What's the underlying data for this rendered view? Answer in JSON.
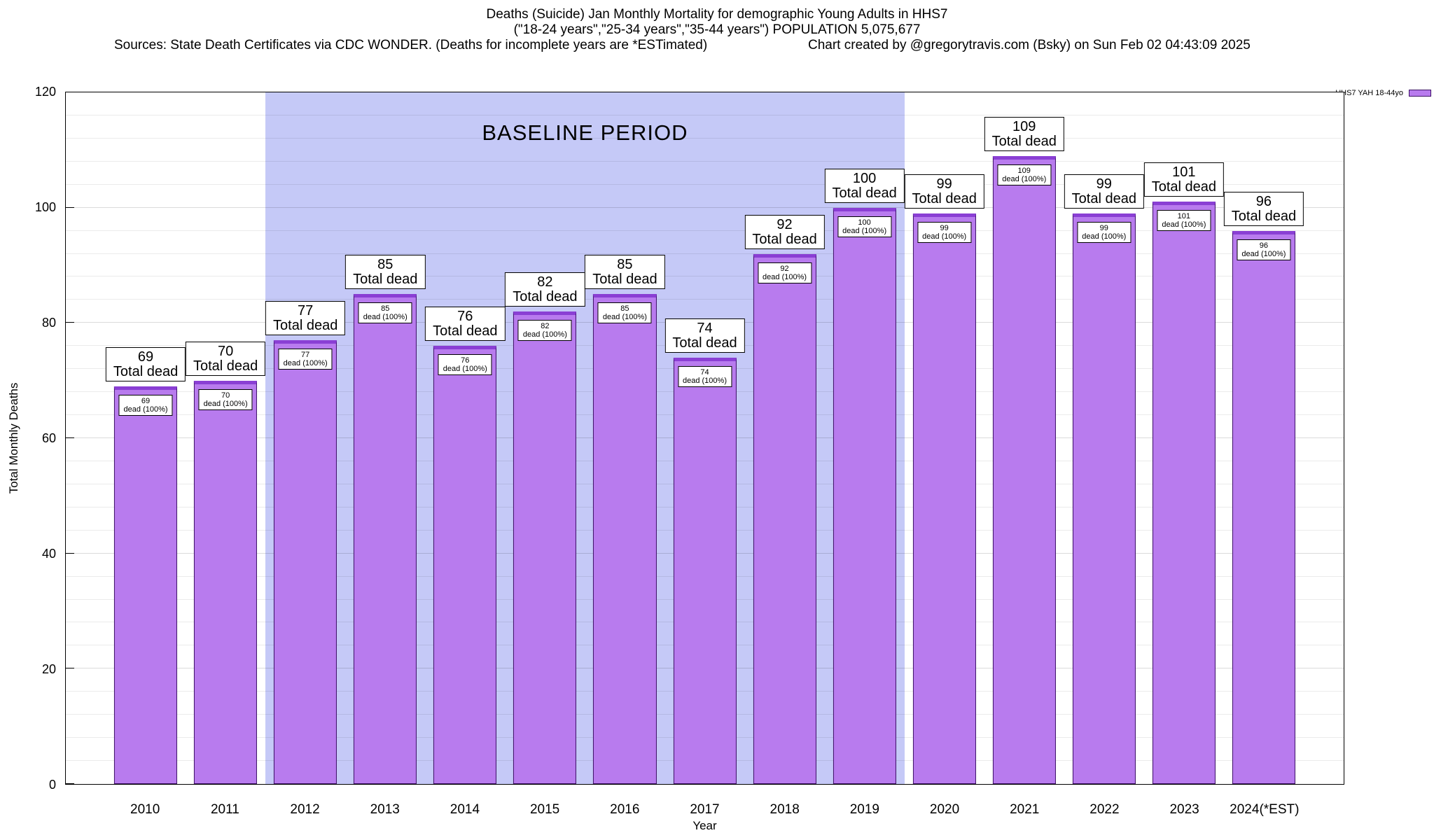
{
  "header": {
    "line1": "Deaths (Suicide) Jan Monthly Mortality for demographic Young Adults in HHS7",
    "line2": "(\"18-24 years\",\"25-34 years\",\"35-44 years\") POPULATION 5,075,677",
    "sources": "Sources: State Death Certificates via CDC WONDER. (Deaths for incomplete years are *ESTimated)",
    "credit": "Chart created by @gregorytravis.com (Bsky) on Sun Feb 02 04:43:09 2025"
  },
  "legend": {
    "label": "HHS7 YAH 18-44yo",
    "swatch_color": "#b87bee",
    "swatch_border": "#3d1166"
  },
  "baseline": {
    "label": "BASELINE PERIOD",
    "start_index": 2,
    "end_index": 9,
    "band_color": "#c5c9f7"
  },
  "axes": {
    "y_ticks": [
      0,
      20,
      40,
      60,
      80,
      100,
      120
    ],
    "minor_step": 4
  },
  "chart_data": {
    "type": "bar",
    "title": "Deaths (Suicide) Jan Monthly Mortality for demographic Young Adults in HHS7",
    "subtitle": "(\"18-24 years\",\"25-34 years\",\"35-44 years\") POPULATION 5,075,677",
    "categories": [
      "2010",
      "2011",
      "2012",
      "2013",
      "2014",
      "2015",
      "2016",
      "2017",
      "2018",
      "2019",
      "2020",
      "2021",
      "2022",
      "2023",
      "2024(*EST)"
    ],
    "values": [
      69,
      70,
      77,
      85,
      76,
      82,
      85,
      74,
      92,
      100,
      99,
      109,
      99,
      101,
      96
    ],
    "xlabel": "Year",
    "ylabel": "Total Monthly Deaths",
    "ylim": [
      0,
      120
    ],
    "grid": true,
    "legend_position": "top-right",
    "legend_entry": "HHS7 YAH 18-44yo",
    "bar_color": "#b87bee",
    "bar_border_color": "#3d1166",
    "bar_top_cap_color": "#8a3fd4",
    "baseline_region": {
      "label": "BASELINE PERIOD",
      "from_category": "2012",
      "to_category": "2019"
    },
    "outer_label_suffix": "Total dead",
    "inner_label_suffix": "dead (100%)"
  }
}
